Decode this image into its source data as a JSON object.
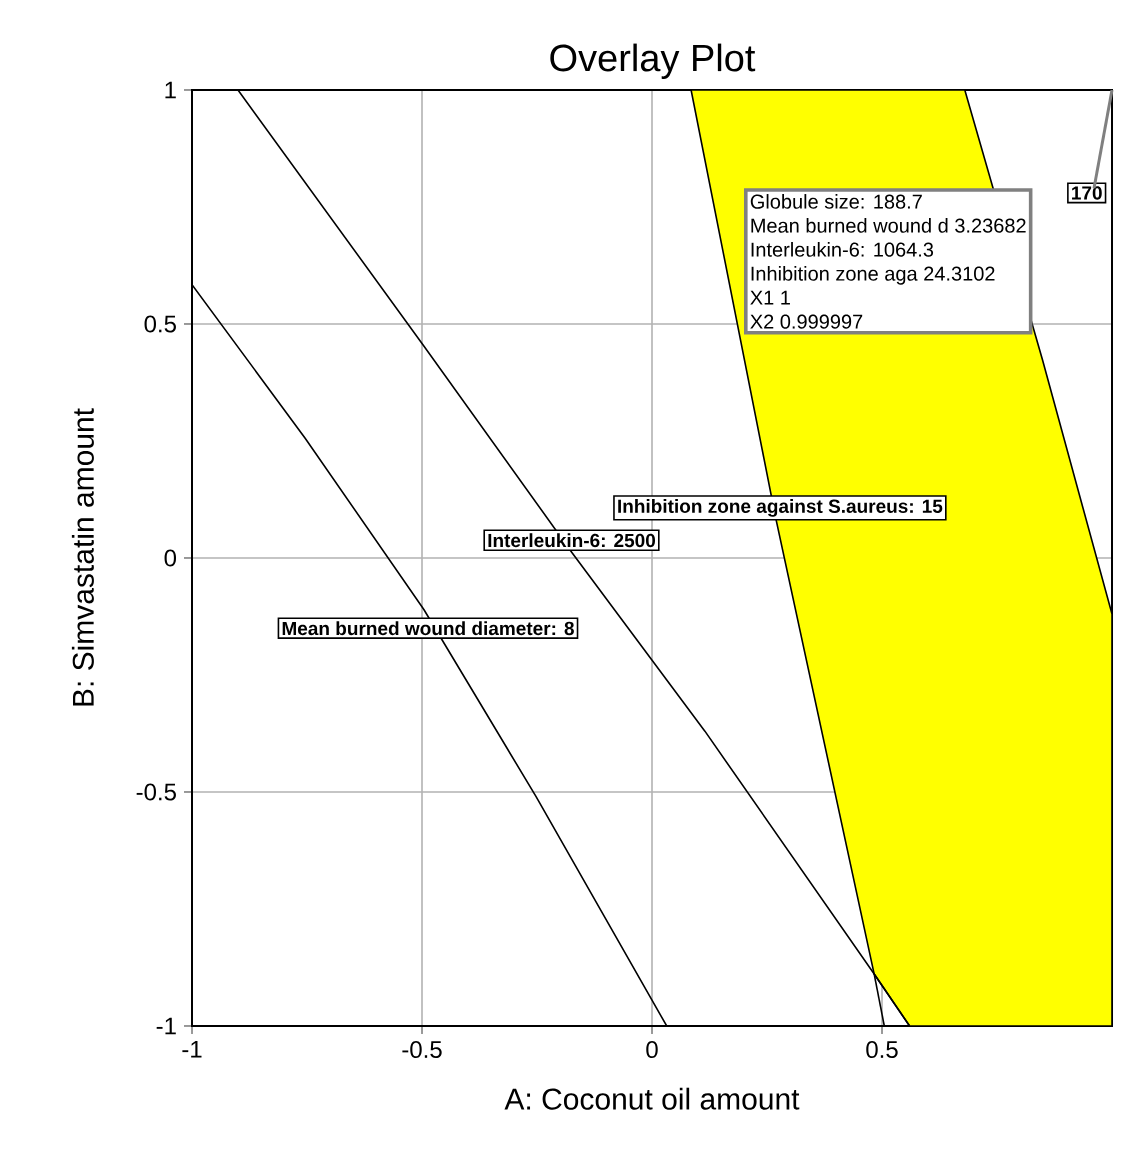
{
  "chart_data": {
    "type": "line",
    "title": "Overlay Plot",
    "xlabel": "A: Coconut oil amount",
    "ylabel": "B: Simvastatin amount",
    "xlim": [
      -1,
      1
    ],
    "ylim": [
      -1,
      1
    ],
    "xticks": [
      -1,
      -0.5,
      0,
      0.5
    ],
    "yticks": [
      -1,
      -0.5,
      0,
      0.5,
      1
    ],
    "grid": true,
    "series": [
      {
        "type": "area",
        "color": "#ffff00",
        "x": [
          0.085,
          0.269,
          0.483,
          0.56,
          1,
          1,
          0.849,
          0.68
        ],
        "values": [
          1,
          0.085,
          -0.889,
          -1,
          -1,
          -0.12,
          0.423,
          1
        ]
      },
      {
        "color": "#000000",
        "x": [
          -1,
          -0.754,
          -0.496,
          -0.252,
          0.032
        ],
        "values": [
          0.584,
          0.256,
          -0.11,
          -0.51,
          -1
        ]
      },
      {
        "color": "#000000",
        "x": [
          -0.9,
          -0.496,
          -0.175,
          0.115,
          0.483,
          0.56
        ],
        "values": [
          1,
          0.453,
          0.013,
          -0.37,
          -0.889,
          -1
        ]
      },
      {
        "color": "#000000",
        "x": [
          0.483,
          0.505
        ],
        "values": [
          -0.889,
          -1
        ]
      }
    ],
    "annotations": [
      {
        "text": "Mean burned wound diameter: 8",
        "x": -0.487,
        "y": -0.15
      },
      {
        "text": "Interleukin-6: 2500",
        "x": -0.175,
        "y": 0.038
      },
      {
        "text": "Inhibition zone against S.aureus: 15",
        "x": 0.278,
        "y": 0.107
      },
      {
        "text": "170",
        "x": 0.945,
        "y": 0.78
      },
      "Globule size:   188.7",
      "Mean burned wound d  3.23682",
      "Interleukin-6:   1064.3",
      "Inhibition zone aga  24.3102",
      "X1  1",
      "X2  0.999997"
    ]
  }
}
